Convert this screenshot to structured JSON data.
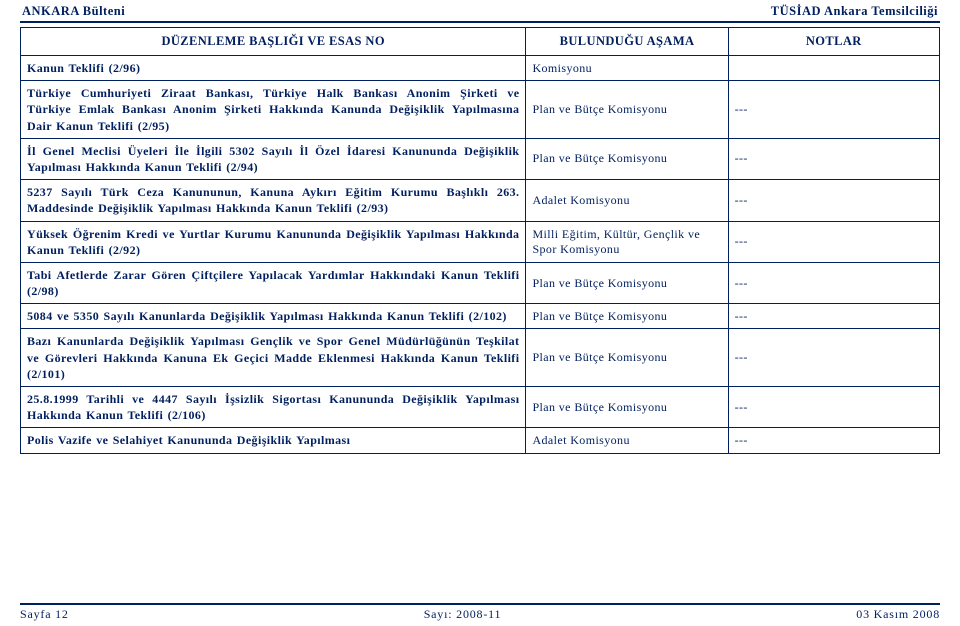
{
  "header": {
    "left": "ANKARA Bülteni",
    "right": "TÜSİAD Ankara Temsilciliği"
  },
  "columns": [
    "DÜZENLEME BAŞLIĞI VE ESAS NO",
    "BULUNDUĞU AŞAMA",
    "NOTLAR"
  ],
  "rows": [
    {
      "title": "Kanun Teklifi (2/96)",
      "stage": "Komisyonu",
      "notes": ""
    },
    {
      "title": "Türkiye Cumhuriyeti Ziraat Bankası, Türkiye Halk Bankası Anonim Şirketi ve Türkiye Emlak Bankası Anonim Şirketi Hakkında Kanunda Değişiklik Yapılmasına Dair Kanun Teklifi (2/95)",
      "stage": "Plan ve Bütçe Komisyonu",
      "notes": "---"
    },
    {
      "title": "İl Genel Meclisi Üyeleri İle İlgili 5302 Sayılı İl Özel İdaresi Kanununda Değişiklik Yapılması Hakkında Kanun Teklifi (2/94)",
      "stage": "Plan ve Bütçe Komisyonu",
      "notes": "---"
    },
    {
      "title": "5237 Sayılı Türk Ceza Kanununun, Kanuna Aykırı Eğitim Kurumu Başlıklı 263. Maddesinde Değişiklik Yapılması Hakkında Kanun Teklifi (2/93)",
      "stage": "Adalet Komisyonu",
      "notes": "---"
    },
    {
      "title": "Yüksek Öğrenim Kredi ve Yurtlar Kurumu Kanununda Değişiklik Yapılması Hakkında Kanun Teklifi (2/92)",
      "stage": "Milli Eğitim, Kültür, Gençlik ve Spor Komisyonu",
      "notes": "---"
    },
    {
      "title": "Tabi Afetlerde Zarar Gören Çiftçilere Yapılacak Yardımlar Hakkındaki Kanun Teklifi (2/98)",
      "stage": "Plan ve Bütçe Komisyonu",
      "notes": "---"
    },
    {
      "title": "5084 ve 5350 Sayılı Kanunlarda Değişiklik Yapılması Hakkında Kanun Teklifi (2/102)",
      "stage": "Plan ve Bütçe Komisyonu",
      "notes": "---"
    },
    {
      "title": "Bazı Kanunlarda Değişiklik Yapılması Gençlik ve Spor Genel Müdürlüğünün Teşkilat ve Görevleri Hakkında Kanuna Ek Geçici Madde Eklenmesi Hakkında Kanun Teklifi (2/101)",
      "stage": "Plan ve Bütçe Komisyonu",
      "notes": "---"
    },
    {
      "title": "25.8.1999 Tarihli ve 4447 Sayılı İşsizlik Sigortası Kanununda Değişiklik Yapılması Hakkında Kanun Teklifi (2/106)",
      "stage": "Plan ve Bütçe Komisyonu",
      "notes": "---"
    },
    {
      "title": "Polis Vazife ve Selahiyet Kanununda Değişiklik Yapılması",
      "stage": "Adalet Komisyonu",
      "notes": "---"
    }
  ],
  "footer": {
    "left": "Sayfa 12",
    "center": "Sayı: 2008-11",
    "right": "03 Kasım 2008"
  },
  "colors": {
    "text": "#001f5f",
    "border": "#001f5f",
    "background": "#ffffff"
  }
}
